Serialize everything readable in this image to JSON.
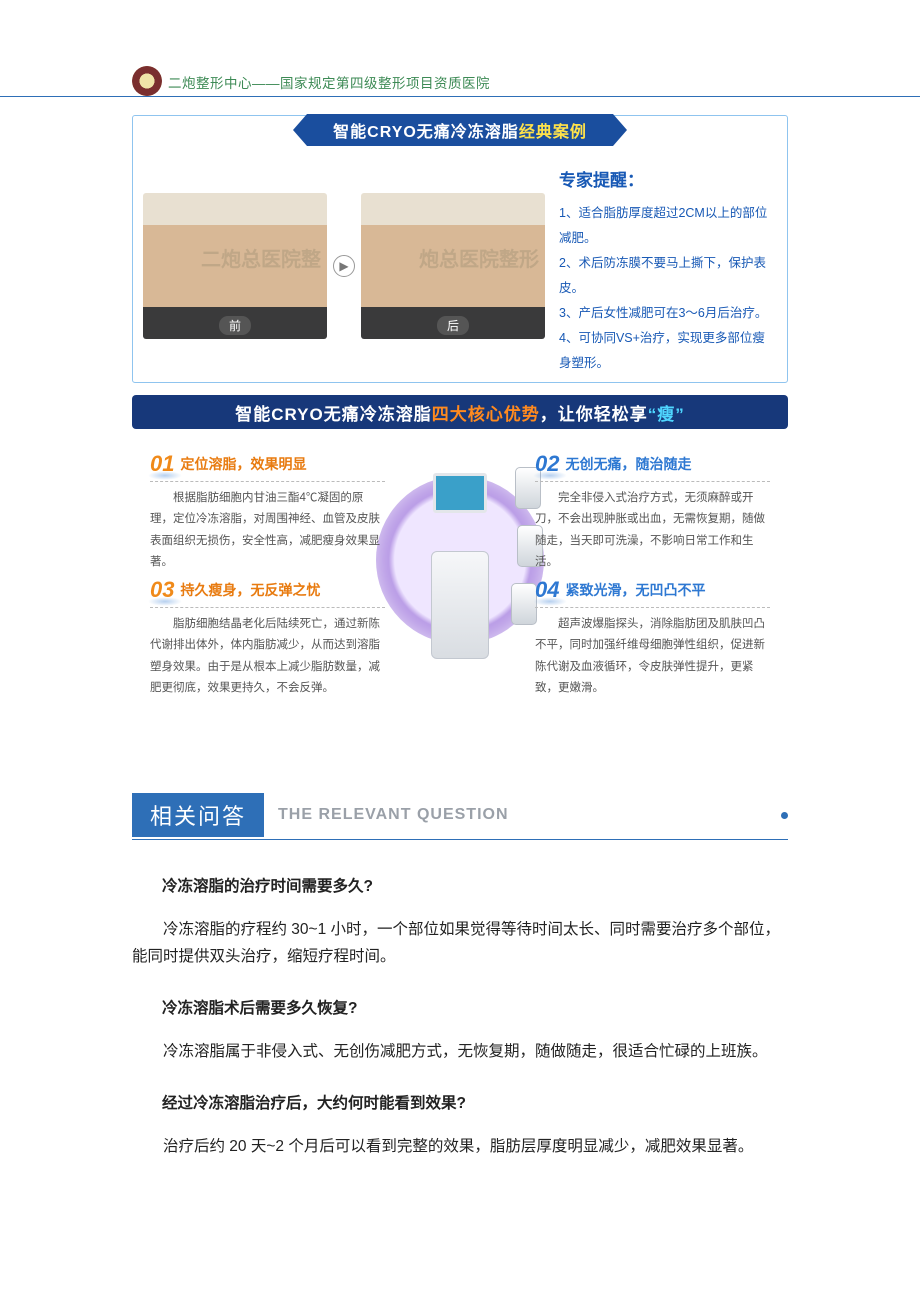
{
  "colors": {
    "header_text": "#3d8a55",
    "header_underline": "#2e6fb7",
    "section_border": "#8fc4ef",
    "title_bar_bg": "#1a4e9e",
    "title_bar_yellow": "#ffe24a",
    "tips_title": "#1859b5",
    "tips_text": "#1859b5",
    "adv_title_bg": "#17387a",
    "adv_white": "#ffffff",
    "adv_orange": "#ff8a1f",
    "adv_cyan": "#4fd6ff",
    "adv_num_orange": "#f08a1a",
    "adv_num_blue": "#2e78d2",
    "adv_name_orange": "#e87b10",
    "adv_name_blue": "#2e78d2",
    "adv_desc": "#555555",
    "faq_badge_bg": "#2e6fb7",
    "faq_sub": "#9aa0a8",
    "faq_underline": "#2e6fb7",
    "body_text": "#222222"
  },
  "header": {
    "text": "二炮整形中心——国家规定第四级整形项目资质医院"
  },
  "case": {
    "title_white": "智能CRYO无痛冷冻溶脂",
    "title_yellow": "经典案例",
    "before_label": "前",
    "after_label": "后",
    "watermark_before": "二炮总医院整",
    "watermark_after": "炮总医院整形",
    "tips_title": "专家提醒：",
    "tips": [
      "1、适合脂肪厚度超过2CM以上的部位减肥。",
      "2、术后防冻膜不要马上撕下，保护表皮。",
      "3、产后女性减肥可在3～6月后治疗。",
      "4、可协同VS+治疗，实现更多部位瘦身塑形。"
    ]
  },
  "advantages": {
    "title_white_1": "智能CRYO无痛冷冻溶脂",
    "title_orange": "四大核心优势",
    "title_white_2": "，让你轻松享",
    "title_cyan": "“瘦”",
    "items": [
      {
        "num": "01",
        "name": "定位溶脂，效果明显",
        "desc": "根据脂肪细胞内甘油三酯4℃凝固的原理，定位冷冻溶脂，对周围神经、血管及皮肤表面组织无损伤，安全性高，减肥瘦身效果显著。"
      },
      {
        "num": "02",
        "name": "无创无痛，随治随走",
        "desc": "完全非侵入式治疗方式，无须麻醉或开刀，不会出现肿胀或出血，无需恢复期，随做随走，当天即可洗澡，不影响日常工作和生活。"
      },
      {
        "num": "03",
        "name": "持久瘦身，无反弹之忧",
        "desc": "脂肪细胞结晶老化后陆续死亡，通过新陈代谢排出体外，体内脂肪减少，从而达到溶脂塑身效果。由于是从根本上减少脂肪数量，减肥更彻底，效果更持久，不会反弹。"
      },
      {
        "num": "04",
        "name": "紧致光滑，无凹凸不平",
        "desc": "超声波爆脂探头，消除脂肪团及肌肤凹凸不平，同时加强纤维母细胞弹性组织，促进新陈代谢及血液循环，令皮肤弹性提升，更紧致，更嫩滑。"
      }
    ]
  },
  "faq": {
    "badge": "相关问答",
    "sub": "THE RELEVANT QUESTION",
    "items": [
      {
        "q": "冷冻溶脂的治疗时间需要多久?",
        "a": "冷冻溶脂的疗程约 30~1 小时，一个部位如果觉得等待时间太长、同时需要治疗多个部位，能同时提供双头治疗，缩短疗程时间。"
      },
      {
        "q": "冷冻溶脂术后需要多久恢复?",
        "a": "冷冻溶脂属于非侵入式、无创伤减肥方式，无恢复期，随做随走，很适合忙碌的上班族。"
      },
      {
        "q": "经过冷冻溶脂治疗后，大约何时能看到效果?",
        "a": "治疗后约 20 天~2 个月后可以看到完整的效果，脂肪层厚度明显减少，减肥效果显著。"
      }
    ]
  }
}
